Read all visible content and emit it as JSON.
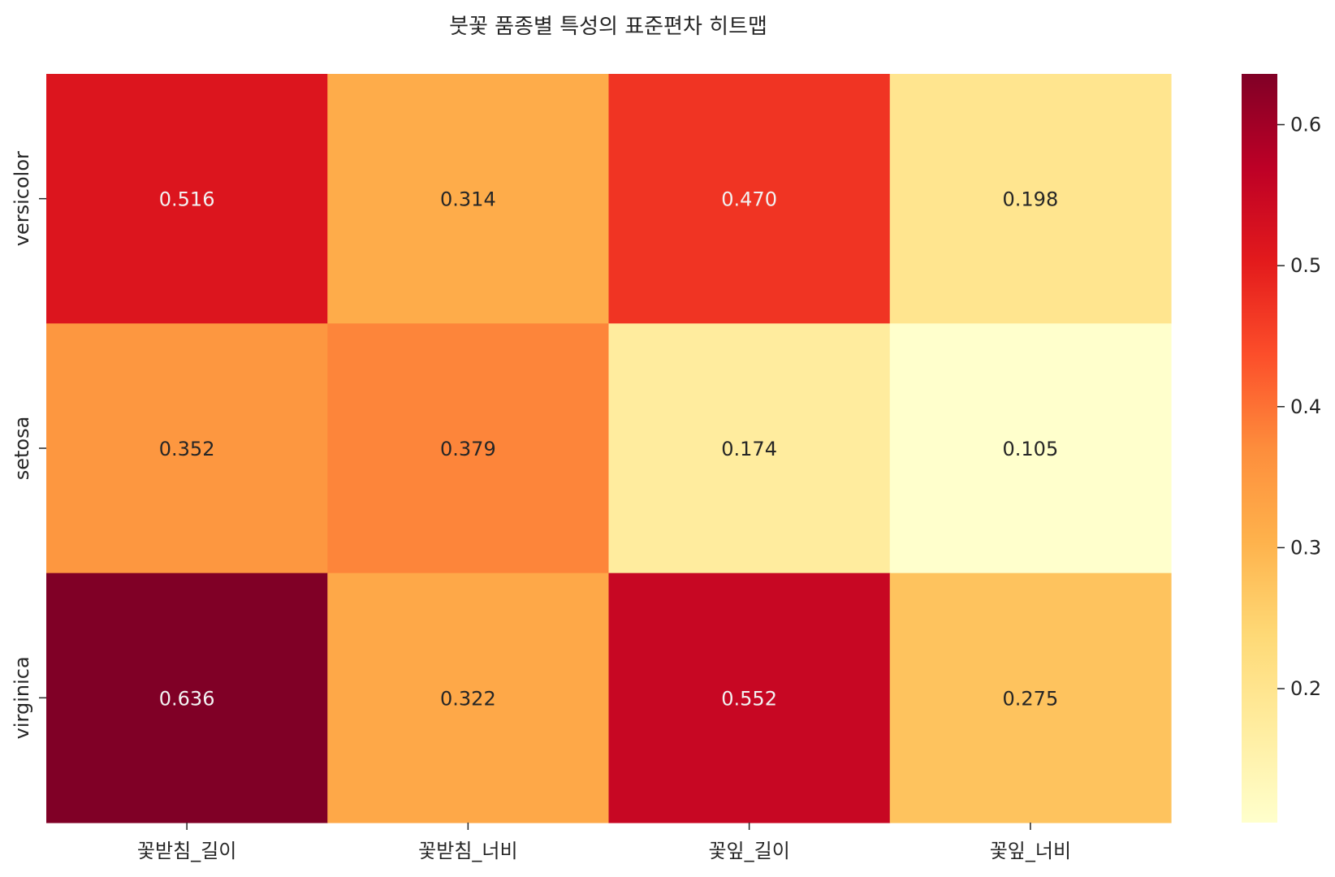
{
  "chart_data": {
    "type": "heatmap",
    "title": "붓꽃 품종별 특성의 표준편차 히트맵",
    "xlabel": "",
    "ylabel": "",
    "columns": [
      "꽃받침_길이",
      "꽃받침_너비",
      "꽃잎_길이",
      "꽃잎_너비"
    ],
    "rows": [
      "versicolor",
      "setosa",
      "virginica"
    ],
    "values": [
      [
        0.516,
        0.314,
        0.47,
        0.198
      ],
      [
        0.352,
        0.379,
        0.174,
        0.105
      ],
      [
        0.636,
        0.322,
        0.552,
        0.275
      ]
    ],
    "value_labels": [
      [
        "0.516",
        "0.314",
        "0.470",
        "0.198"
      ],
      [
        "0.352",
        "0.379",
        "0.174",
        "0.105"
      ],
      [
        "0.636",
        "0.322",
        "0.552",
        "0.275"
      ]
    ],
    "colormap": "YlOrRd",
    "vmin": 0.105,
    "vmax": 0.636,
    "colorbar": {
      "ticks": [
        0.2,
        0.3,
        0.4,
        0.5,
        0.6
      ],
      "tick_labels": [
        "0.2",
        "0.3",
        "0.4",
        "0.5",
        "0.6"
      ]
    },
    "grid": false
  }
}
